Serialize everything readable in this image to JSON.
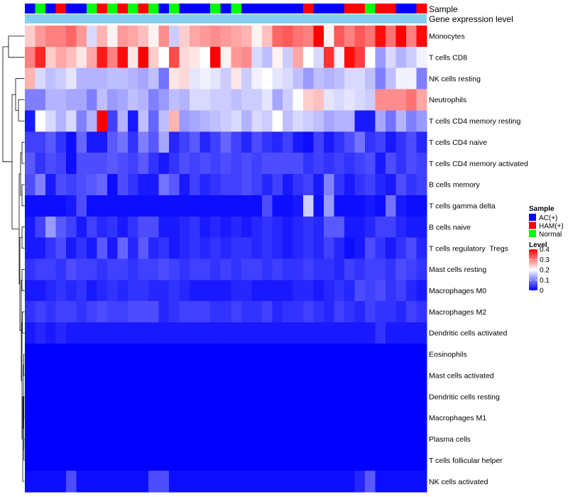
{
  "chart_data": {
    "type": "heatmap",
    "annotations": [
      {
        "name": "Sample"
      },
      {
        "name": "Gene expression level",
        "color": "#87cdf0"
      }
    ],
    "rows": [
      "Monocytes",
      "T cells CD8",
      "NK cells resting",
      "Neutrophils",
      "T cells CD4 memory resting",
      "T cells CD4 naive",
      "T cells CD4 memory activated",
      "B cells memory",
      "T cells gamma delta",
      "B cells naive",
      "T cells regulatory  Tregs",
      "Mast cells resting",
      "Macrophages M0",
      "Macrophages M2",
      "Dendritic cells activated",
      "Eosinophils",
      "Mast cells activated",
      "Dendritic cells resting",
      "Macrophages M1",
      "Plasma cells",
      "T cells follicular helper",
      "NK cells activated"
    ],
    "sample_groups": [
      "AC(+)",
      "Normal",
      "AC(+)",
      "HAM(+)",
      "AC(+)",
      "AC(+)",
      "Normal",
      "HAM(+)",
      "Normal",
      "HAM(+)",
      "Normal",
      "HAM(+)",
      "Normal",
      "AC(+)",
      "Normal",
      "AC(+)",
      "AC(+)",
      "AC(+)",
      "Normal",
      "AC(+)",
      "Normal",
      "AC(+)",
      "AC(+)",
      "AC(+)",
      "AC(+)",
      "AC(+)",
      "AC(+)",
      "HAM(+)",
      "AC(+)",
      "AC(+)",
      "AC(+)",
      "HAM(+)",
      "HAM(+)",
      "Normal",
      "HAM(+)",
      "HAM(+)",
      "AC(+)",
      "AC(+)",
      "HAM(+)"
    ],
    "values": [
      [
        0.24,
        0.28,
        0.3,
        0.3,
        0.32,
        0.28,
        0.17,
        0.26,
        0.21,
        0.28,
        0.27,
        0.25,
        0.21,
        0.29,
        0.16,
        0.24,
        0.27,
        0.28,
        0.29,
        0.28,
        0.27,
        0.26,
        0.21,
        0.25,
        0.32,
        0.33,
        0.31,
        0.3,
        0.4,
        0.21,
        0.33,
        0.3,
        0.33,
        0.31,
        0.39,
        0.31,
        0.4,
        0.3,
        0.39
      ],
      [
        0.3,
        0.37,
        0.24,
        0.27,
        0.25,
        0.22,
        0.27,
        0.38,
        0.3,
        0.39,
        0.22,
        0.4,
        0.24,
        0.2,
        0.34,
        0.23,
        0.22,
        0.2,
        0.4,
        0.21,
        0.28,
        0.29,
        0.17,
        0.15,
        0.21,
        0.16,
        0.27,
        0.2,
        0.17,
        0.36,
        0.19,
        0.39,
        0.35,
        0.2,
        0.12,
        0.17,
        0.14,
        0.16,
        0.19
      ],
      [
        0.26,
        0.17,
        0.15,
        0.16,
        0.18,
        0.14,
        0.14,
        0.14,
        0.15,
        0.15,
        0.14,
        0.13,
        0.15,
        0.09,
        0.22,
        0.23,
        0.18,
        0.19,
        0.18,
        0.16,
        0.22,
        0.16,
        0.19,
        0.2,
        0.18,
        0.17,
        0.15,
        0.12,
        0.15,
        0.14,
        0.15,
        0.17,
        0.17,
        0.15,
        0.1,
        0.15,
        0.19,
        0.19,
        0.1
      ],
      [
        0.1,
        0.1,
        0.14,
        0.14,
        0.13,
        0.13,
        0.1,
        0.15,
        0.12,
        0.13,
        0.15,
        0.14,
        0.1,
        0.12,
        0.15,
        0.14,
        0.17,
        0.17,
        0.16,
        0.16,
        0.15,
        0.16,
        0.16,
        0.18,
        0.13,
        0.16,
        0.2,
        0.24,
        0.25,
        0.18,
        0.17,
        0.18,
        0.17,
        0.16,
        0.29,
        0.29,
        0.29,
        0.31,
        0.27
      ],
      [
        0.02,
        0.2,
        0.17,
        0.14,
        0.17,
        0.1,
        0.14,
        0.4,
        0.05,
        0.14,
        0.02,
        0.15,
        0.08,
        0.15,
        0.26,
        0.12,
        0.13,
        0.14,
        0.15,
        0.16,
        0.17,
        0.14,
        0.17,
        0.16,
        0.2,
        0.15,
        0.17,
        0.16,
        0.15,
        0.13,
        0.14,
        0.14,
        0.02,
        0.02,
        0.13,
        0.09,
        0.14,
        0.1,
        0.12
      ],
      [
        0.05,
        0.05,
        0.07,
        0.04,
        0.01,
        0.08,
        0.02,
        0.02,
        0.07,
        0.09,
        0.04,
        0.1,
        0.07,
        0.13,
        0.03,
        0.05,
        0.07,
        0.03,
        0.05,
        0.08,
        0.05,
        0.03,
        0.06,
        0.04,
        0.03,
        0.05,
        0.02,
        0.01,
        0.05,
        0.02,
        0.04,
        0.06,
        0.09,
        0.04,
        0.05,
        0.02,
        0.04,
        0.06,
        0.03
      ],
      [
        0.07,
        0.04,
        0.06,
        0.05,
        0.01,
        0.06,
        0.06,
        0.06,
        0.07,
        0.06,
        0.05,
        0.07,
        0.04,
        0.02,
        0.04,
        0.06,
        0.05,
        0.06,
        0.05,
        0.06,
        0.05,
        0.06,
        0.05,
        0.06,
        0.06,
        0.06,
        0.06,
        0.04,
        0.05,
        0.04,
        0.05,
        0.04,
        0.05,
        0.06,
        0.02,
        0.06,
        0.04,
        0.06,
        0.05
      ],
      [
        0.06,
        0.1,
        0.02,
        0.06,
        0.05,
        0.06,
        0.07,
        0.08,
        0.01,
        0.06,
        0.04,
        0.02,
        0.02,
        0.09,
        0.07,
        0.02,
        0.05,
        0.03,
        0.04,
        0.05,
        0.05,
        0.06,
        0.05,
        0.03,
        0.05,
        0.02,
        0.04,
        0.05,
        0.02,
        0.1,
        0.04,
        0.02,
        0.04,
        0.05,
        0.03,
        0.02,
        0.06,
        0.04,
        0.05
      ],
      [
        0.01,
        0.01,
        0.01,
        0.01,
        0.02,
        0.06,
        0.01,
        0.01,
        0.01,
        0.01,
        0.01,
        0.01,
        0.01,
        0.01,
        0.01,
        0.01,
        0.01,
        0.01,
        0.01,
        0.01,
        0.01,
        0.01,
        0.01,
        0.06,
        0.01,
        0.01,
        0.02,
        0.16,
        0.01,
        0.12,
        0.01,
        0.01,
        0.01,
        0.02,
        0.01,
        0.09,
        0.02,
        0.01,
        0.01
      ],
      [
        0.02,
        0.05,
        0.12,
        0.07,
        0.05,
        0.02,
        0.05,
        0.03,
        0.04,
        0.02,
        0.04,
        0.06,
        0.06,
        0.02,
        0.02,
        0.03,
        0.04,
        0.02,
        0.03,
        0.02,
        0.03,
        0.02,
        0.03,
        0.04,
        0.03,
        0.02,
        0.03,
        0.04,
        0.03,
        0.07,
        0.07,
        0.02,
        0.02,
        0.03,
        0.05,
        0.05,
        0.03,
        0.02,
        0.02
      ],
      [
        0.02,
        0.02,
        0.04,
        0.06,
        0.02,
        0.04,
        0.02,
        0.07,
        0.02,
        0.08,
        0.03,
        0.07,
        0.03,
        0.04,
        0.02,
        0.03,
        0.04,
        0.03,
        0.04,
        0.03,
        0.04,
        0.04,
        0.03,
        0.04,
        0.03,
        0.02,
        0.03,
        0.04,
        0.03,
        0.05,
        0.03,
        0.01,
        0.02,
        0.06,
        0.04,
        0.02,
        0.04,
        0.06,
        0.03
      ],
      [
        0.04,
        0.05,
        0.05,
        0.04,
        0.06,
        0.05,
        0.05,
        0.04,
        0.05,
        0.05,
        0.04,
        0.05,
        0.05,
        0.06,
        0.05,
        0.04,
        0.05,
        0.05,
        0.04,
        0.05,
        0.04,
        0.05,
        0.05,
        0.04,
        0.05,
        0.04,
        0.04,
        0.05,
        0.04,
        0.04,
        0.03,
        0.05,
        0.04,
        0.05,
        0.05,
        0.04,
        0.06,
        0.05,
        0.04
      ],
      [
        0.02,
        0.02,
        0.03,
        0.04,
        0.03,
        0.04,
        0.02,
        0.03,
        0.04,
        0.03,
        0.04,
        0.04,
        0.03,
        0.03,
        0.04,
        0.03,
        0.02,
        0.02,
        0.02,
        0.02,
        0.03,
        0.03,
        0.02,
        0.02,
        0.02,
        0.02,
        0.03,
        0.03,
        0.02,
        0.03,
        0.04,
        0.03,
        0.06,
        0.05,
        0.06,
        0.04,
        0.05,
        0.03,
        0.02
      ],
      [
        0.04,
        0.05,
        0.04,
        0.05,
        0.05,
        0.04,
        0.05,
        0.06,
        0.05,
        0.05,
        0.06,
        0.06,
        0.06,
        0.03,
        0.04,
        0.05,
        0.05,
        0.05,
        0.04,
        0.04,
        0.05,
        0.04,
        0.04,
        0.05,
        0.03,
        0.04,
        0.04,
        0.05,
        0.04,
        0.03,
        0.05,
        0.04,
        0.03,
        0.05,
        0.04,
        0.04,
        0.03,
        0.05,
        0.04
      ],
      [
        0.02,
        0.03,
        0.02,
        0.03,
        0.02,
        0.02,
        0.02,
        0.02,
        0.02,
        0.02,
        0.02,
        0.02,
        0.02,
        0.02,
        0.02,
        0.02,
        0.02,
        0.02,
        0.02,
        0.02,
        0.02,
        0.02,
        0.02,
        0.02,
        0.02,
        0.02,
        0.02,
        0.02,
        0.02,
        0.02,
        0.02,
        0.02,
        0.02,
        0.02,
        0.04,
        0.02,
        0.02,
        0.02,
        0.02
      ],
      [
        0,
        0,
        0,
        0,
        0,
        0,
        0,
        0,
        0,
        0,
        0,
        0,
        0,
        0,
        0,
        0,
        0,
        0,
        0,
        0,
        0,
        0,
        0,
        0,
        0,
        0,
        0,
        0,
        0,
        0,
        0,
        0,
        0,
        0,
        0,
        0,
        0,
        0,
        0
      ],
      [
        0,
        0,
        0,
        0,
        0,
        0,
        0,
        0,
        0,
        0,
        0,
        0,
        0,
        0,
        0,
        0,
        0,
        0,
        0,
        0,
        0,
        0,
        0,
        0,
        0,
        0,
        0,
        0,
        0,
        0,
        0,
        0,
        0,
        0,
        0,
        0,
        0,
        0,
        0
      ],
      [
        0,
        0,
        0,
        0,
        0,
        0,
        0,
        0,
        0,
        0,
        0,
        0,
        0,
        0,
        0,
        0,
        0,
        0,
        0,
        0,
        0,
        0,
        0,
        0,
        0,
        0,
        0,
        0,
        0,
        0,
        0,
        0,
        0,
        0,
        0,
        0,
        0,
        0,
        0
      ],
      [
        0,
        0,
        0,
        0,
        0,
        0,
        0,
        0,
        0,
        0,
        0,
        0,
        0,
        0,
        0,
        0,
        0,
        0,
        0,
        0,
        0,
        0,
        0,
        0,
        0,
        0,
        0,
        0,
        0,
        0,
        0,
        0,
        0,
        0,
        0,
        0,
        0,
        0,
        0
      ],
      [
        0,
        0,
        0,
        0,
        0,
        0,
        0,
        0,
        0,
        0,
        0,
        0,
        0,
        0,
        0,
        0,
        0,
        0,
        0,
        0,
        0,
        0,
        0,
        0,
        0,
        0,
        0,
        0,
        0,
        0,
        0,
        0,
        0,
        0,
        0,
        0,
        0,
        0,
        0
      ],
      [
        0,
        0,
        0,
        0,
        0,
        0,
        0,
        0,
        0,
        0,
        0,
        0,
        0,
        0,
        0,
        0,
        0,
        0,
        0,
        0,
        0,
        0,
        0,
        0,
        0,
        0,
        0,
        0,
        0,
        0,
        0,
        0,
        0,
        0,
        0,
        0,
        0,
        0,
        0
      ],
      [
        0.01,
        0.01,
        0.01,
        0.01,
        0.06,
        0.01,
        0.01,
        0.01,
        0.01,
        0.01,
        0.01,
        0.01,
        0.06,
        0.06,
        0.01,
        0.01,
        0.01,
        0.01,
        0.01,
        0.01,
        0.01,
        0.01,
        0.01,
        0.01,
        0.01,
        0.01,
        0.01,
        0.01,
        0.01,
        0.01,
        0.01,
        0.01,
        0.03,
        0.07,
        0.01,
        0.01,
        0.01,
        0.01,
        0.01
      ]
    ],
    "color_scale": {
      "stops": [
        0,
        0.2,
        0.4
      ],
      "colors": [
        "#0000FF",
        "#FFFFFF",
        "#FF0000"
      ]
    },
    "legend": {
      "sample": {
        "title": "Sample",
        "entries": [
          {
            "label": "AC(+)",
            "color": "#0000FF"
          },
          {
            "label": "HAM(+)",
            "color": "#FF0000"
          },
          {
            "label": "Normal",
            "color": "#00FF00"
          }
        ]
      },
      "level": {
        "title": "Level",
        "ticks": [
          {
            "value": 0.4,
            "label": "0.4"
          },
          {
            "value": 0.3,
            "label": "0.3"
          },
          {
            "value": 0.2,
            "label": "0.2"
          },
          {
            "value": 0.1,
            "label": "0.1"
          },
          {
            "value": 0,
            "label": "0"
          }
        ]
      }
    }
  }
}
